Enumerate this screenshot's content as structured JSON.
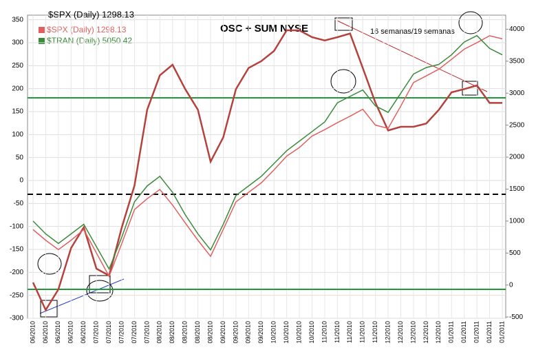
{
  "chart_data": {
    "type": "line",
    "title": "OSC + SUM NYSE",
    "header": "$SPX (Daily) 1298.13",
    "annotation": "16 semanas/19 semanas",
    "categories": [
      "06/2010",
      "06/2010",
      "06/2010",
      "06/2010",
      "06/2010",
      "07/2010",
      "07/2010",
      "07/2010",
      "07/2010",
      "07/2010",
      "08/2010",
      "08/2010",
      "08/2010",
      "08/2010",
      "08/2010",
      "09/2010",
      "09/2010",
      "09/2010",
      "09/2010",
      "10/2010",
      "10/2010",
      "10/2010",
      "10/2010",
      "11/2010",
      "11/2010",
      "11/2010",
      "11/2010",
      "11/2010",
      "12/2010",
      "12/2010",
      "12/2010",
      "12/2010",
      "12/2010",
      "01/2011",
      "01/2011",
      "01/2011",
      "01/2011",
      "01/2011"
    ],
    "series": [
      {
        "name": "OSC + SUM NYSE",
        "color": "#b5413d",
        "values": [
          -222,
          -282,
          -237,
          -147,
          -102,
          -192,
          -207,
          -102,
          -11,
          154,
          229,
          252,
          199,
          154,
          41,
          94,
          199,
          245,
          260,
          282,
          327,
          327,
          312,
          305,
          312,
          320,
          245,
          169,
          109,
          117,
          117,
          124,
          154,
          192,
          199,
          207,
          169,
          169
        ]
      },
      {
        "name": "$SPX (Daily) 1298.13",
        "color": "#e06060",
        "axis": "y2",
        "values": [
          867,
          700,
          554,
          700,
          867,
          500,
          136,
          650,
          1180,
          1350,
          1494,
          1250,
          972,
          700,
          449,
          870,
          1300,
          1450,
          1598,
          1800,
          2016,
          2150,
          2330,
          2430,
          2539,
          2640,
          2748,
          2500,
          2450,
          2800,
          3166,
          3270,
          3375,
          3530,
          3688,
          3790,
          3898,
          3850
        ]
      },
      {
        "name": "$TRAN (Daily) 5050.42",
        "color": "#3a8a3a",
        "axis": "y2",
        "values": [
          1000,
          800,
          650,
          800,
          950,
          600,
          250,
          750,
          1300,
          1550,
          1700,
          1450,
          1100,
          800,
          550,
          950,
          1400,
          1550,
          1700,
          1900,
          2100,
          2250,
          2400,
          2550,
          2850,
          2950,
          3050,
          2800,
          2700,
          3000,
          3300,
          3400,
          3450,
          3600,
          3800,
          3900,
          3700,
          3600
        ]
      }
    ],
    "ylim": [
      -300,
      360
    ],
    "yticks": [
      -300,
      -250,
      -200,
      -150,
      -100,
      -50,
      0,
      50,
      100,
      150,
      200,
      250,
      300,
      350
    ],
    "y2lim": [
      -520,
      4220
    ],
    "y2ticks": [
      -500,
      0,
      500,
      1000,
      1500,
      2000,
      2500,
      3000,
      3500,
      4000
    ],
    "hlines": [
      {
        "value": 180,
        "color": "#1f9a3a"
      },
      {
        "value": -237,
        "color": "#1f9a3a"
      },
      {
        "value": -30,
        "color": "#000000",
        "dashed": true
      }
    ],
    "grid": true
  }
}
